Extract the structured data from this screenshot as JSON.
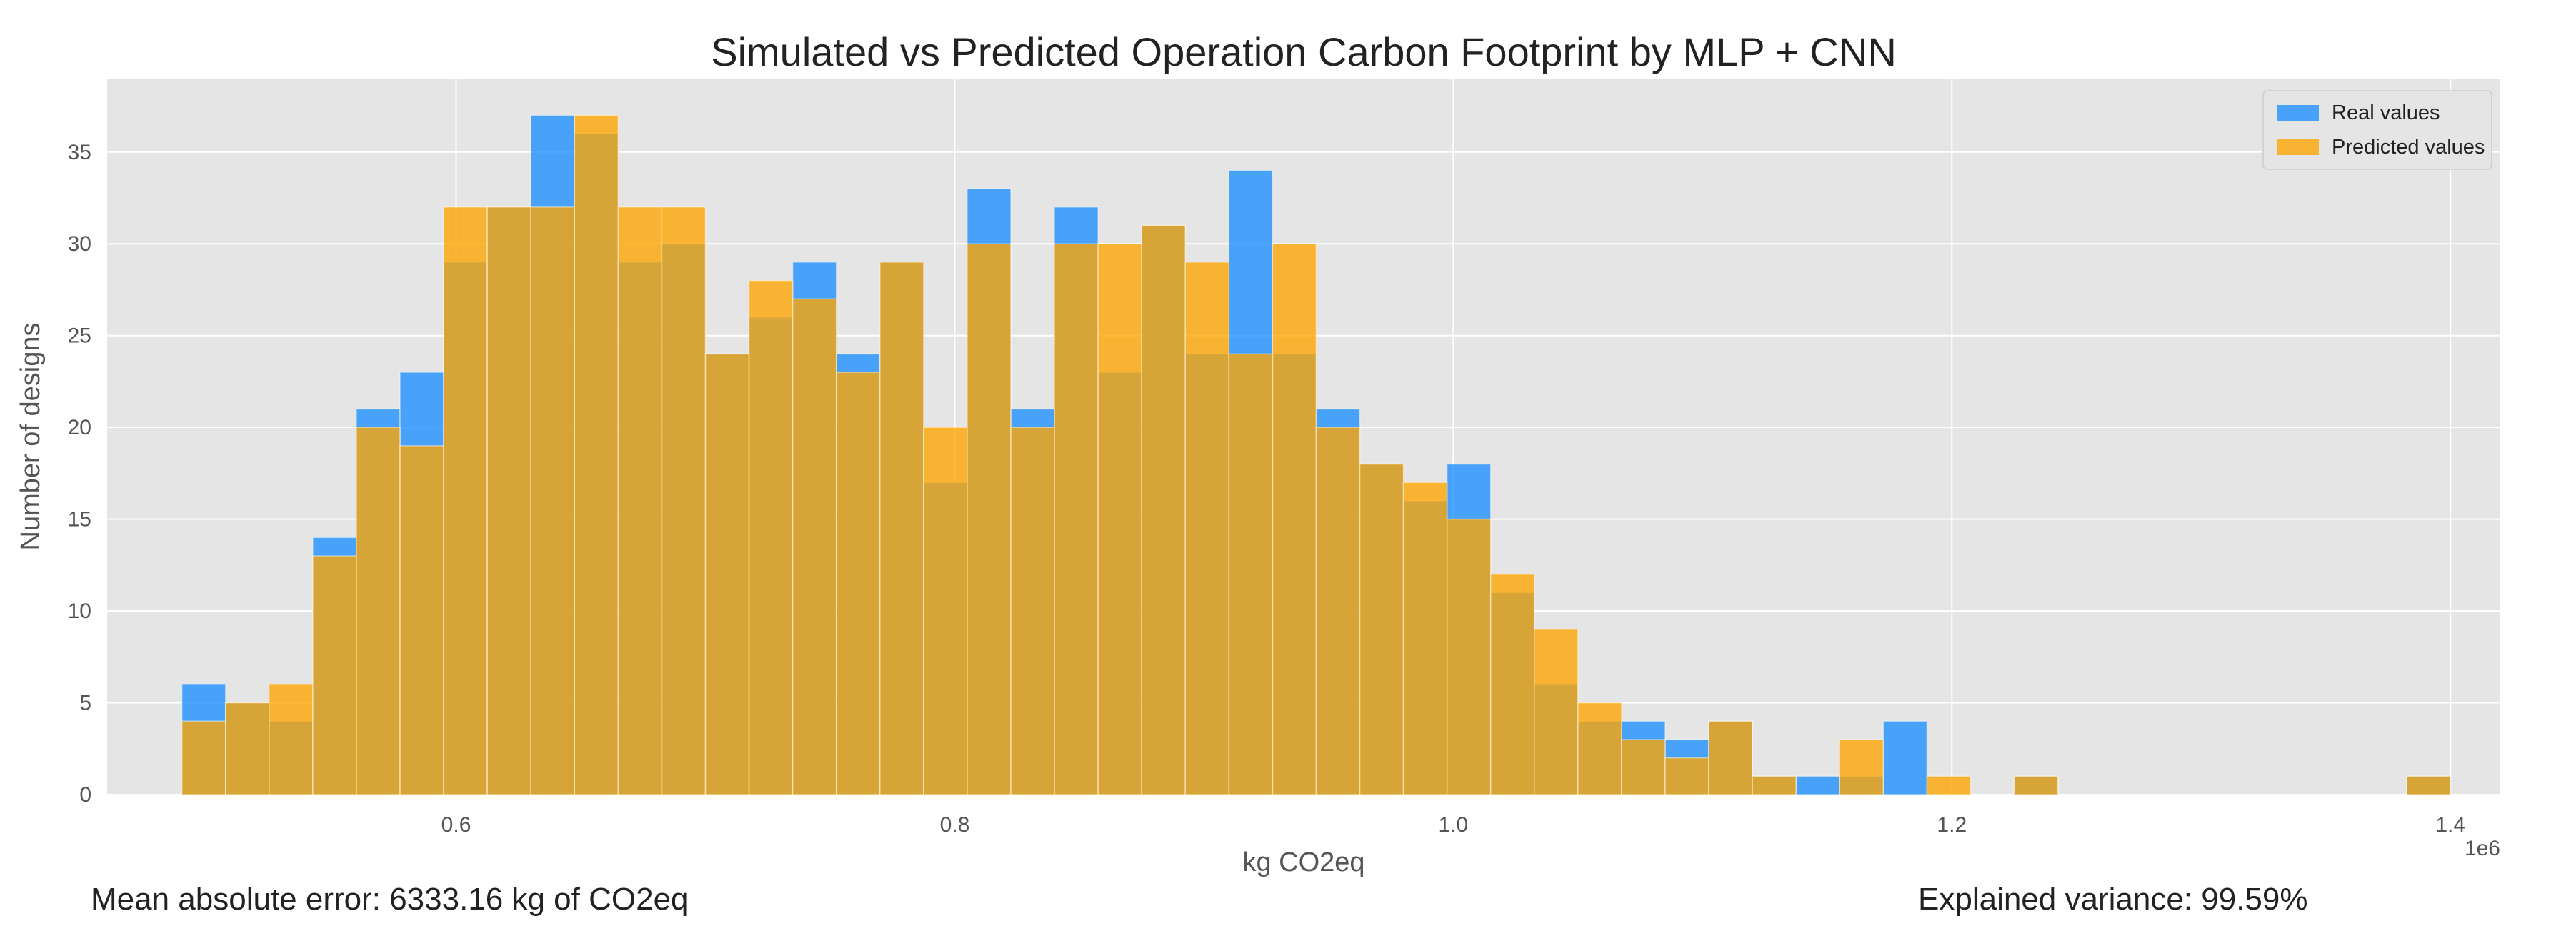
{
  "chart_data": {
    "type": "bar",
    "title": "Simulated vs Predicted Operation Carbon Footprint by MLP + CNN",
    "xlabel": "kg CO2eq",
    "ylabel": "Number of designs",
    "x_offset_label": "1e6",
    "xlim": [
      0.46,
      1.42
    ],
    "ylim": [
      0,
      39
    ],
    "xticks": [
      0.6,
      0.8,
      1.0,
      1.2,
      1.4
    ],
    "xtick_labels": [
      "0.6",
      "0.8",
      "1.0",
      "1.2",
      "1.4"
    ],
    "yticks": [
      0,
      5,
      10,
      15,
      20,
      25,
      30,
      35
    ],
    "ytick_labels": [
      "0",
      "5",
      "10",
      "15",
      "20",
      "25",
      "30",
      "35"
    ],
    "grid": true,
    "legend_position": "top-right",
    "bin_start": 0.49,
    "bin_width": 0.0175,
    "series": [
      {
        "name": "Real values",
        "color": "#1E90FF",
        "values": [
          6,
          5,
          4,
          14,
          21,
          23,
          29,
          32,
          37,
          36,
          29,
          30,
          24,
          26,
          29,
          24,
          29,
          17,
          33,
          21,
          32,
          23,
          31,
          24,
          34,
          24,
          21,
          18,
          16,
          18,
          11,
          6,
          4,
          4,
          3,
          4,
          1,
          1,
          1,
          4,
          0,
          0,
          1,
          0,
          0,
          0,
          0,
          0,
          0,
          0,
          0,
          1
        ]
      },
      {
        "name": "Predicted values",
        "color": "#FFA500",
        "values": [
          4,
          5,
          6,
          13,
          20,
          19,
          32,
          32,
          32,
          37,
          32,
          32,
          24,
          28,
          27,
          23,
          29,
          20,
          30,
          20,
          30,
          30,
          31,
          29,
          24,
          30,
          20,
          18,
          17,
          15,
          12,
          9,
          5,
          3,
          2,
          4,
          1,
          0,
          3,
          0,
          1,
          0,
          1,
          0,
          0,
          0,
          0,
          0,
          0,
          0,
          0,
          1
        ]
      }
    ]
  },
  "annotations": {
    "mae": "Mean absolute error: 6333.16 kg of CO2eq",
    "variance": "Explained variance: 99.59%"
  }
}
